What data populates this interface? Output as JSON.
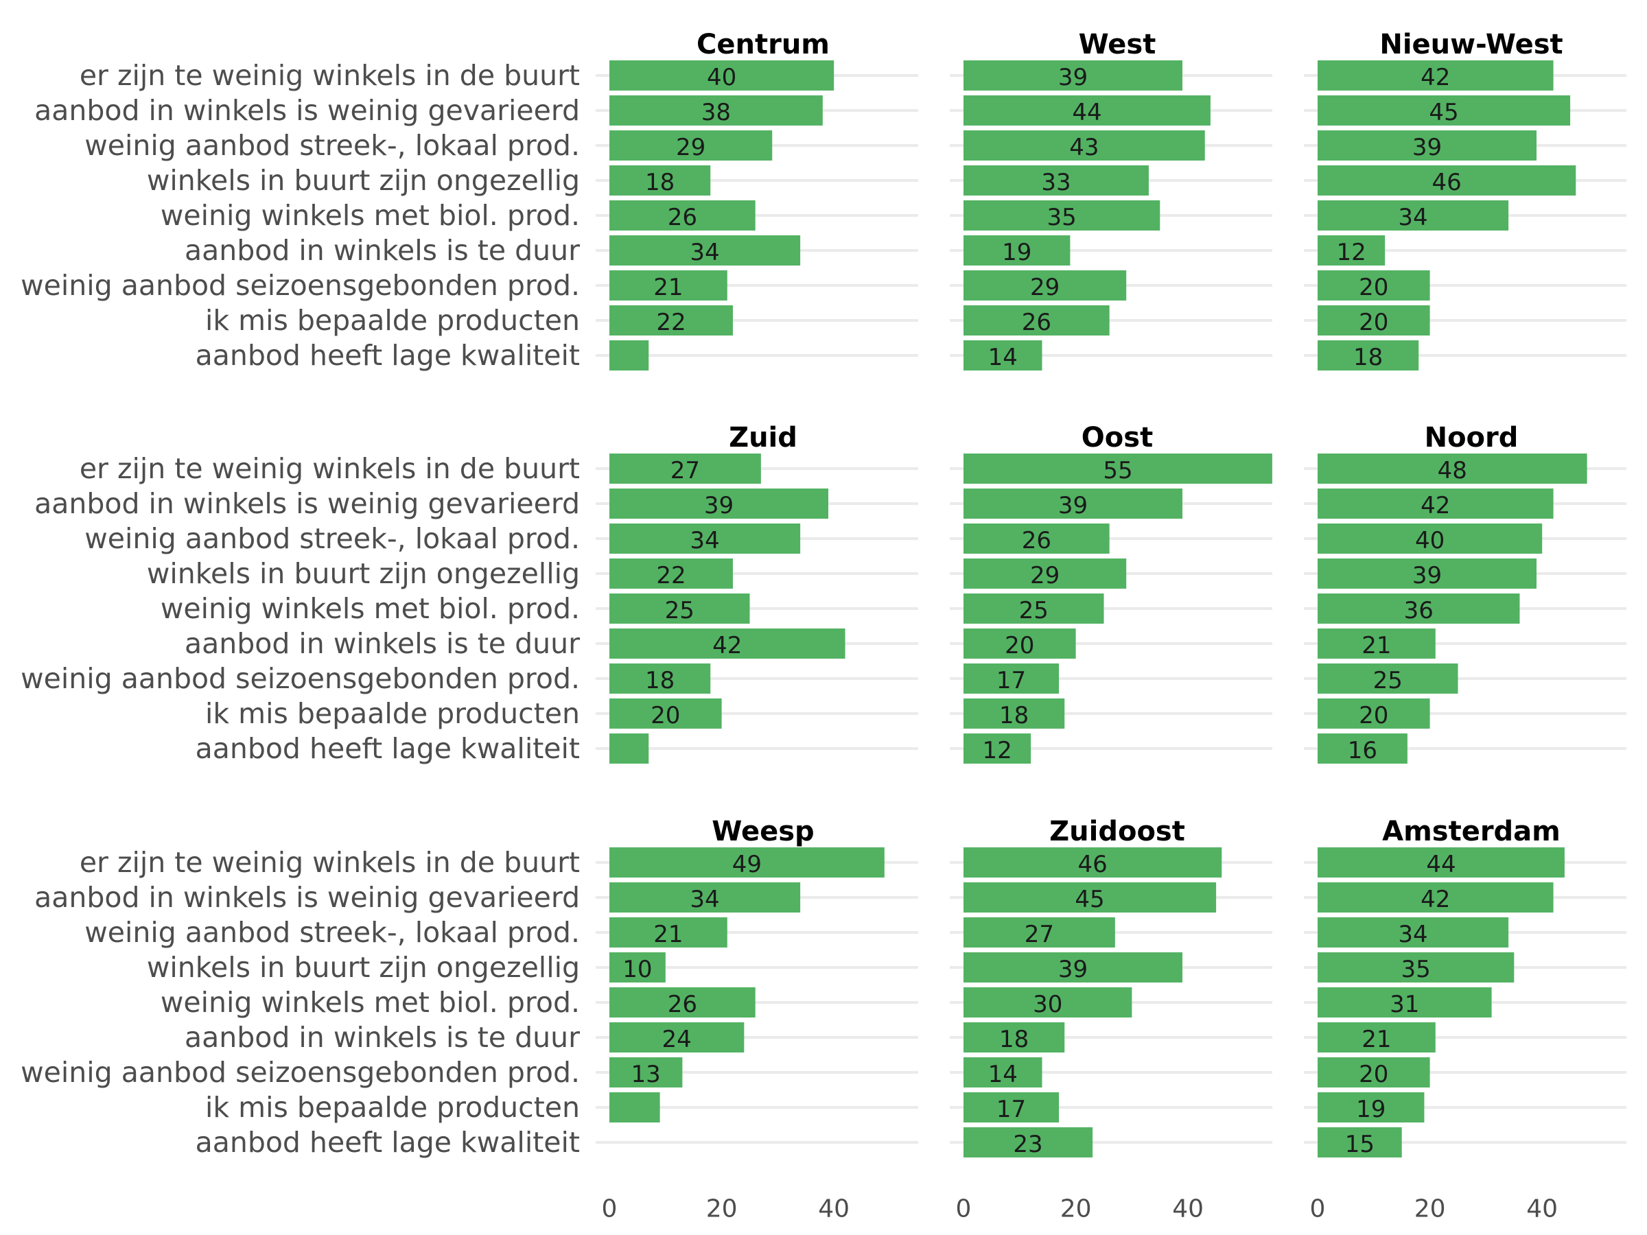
{
  "chart_data": {
    "type": "bar",
    "orientation": "horizontal",
    "categories": [
      "er zijn te weinig winkels in de buurt",
      "aanbod in winkels is weinig gevarieerd",
      "weinig aanbod streek-, lokaal prod.",
      "winkels in buurt zijn ongezellig",
      "weinig winkels met biol. prod.",
      "aanbod in winkels is te duur",
      "weinig aanbod seizoensgebonden prod.",
      "ik mis bepaalde producten",
      "aanbod heeft lage kwaliteit"
    ],
    "panels": [
      {
        "title": "Centrum",
        "values": [
          40,
          38,
          29,
          18,
          26,
          34,
          21,
          22,
          7
        ],
        "labels": [
          "40",
          "38",
          "29",
          "18",
          "26",
          "34",
          "21",
          "22",
          ""
        ]
      },
      {
        "title": "West",
        "values": [
          39,
          44,
          43,
          33,
          35,
          19,
          29,
          26,
          14
        ],
        "labels": [
          "39",
          "44",
          "43",
          "33",
          "35",
          "19",
          "29",
          "26",
          "14"
        ]
      },
      {
        "title": "Nieuw-West",
        "values": [
          42,
          45,
          39,
          46,
          34,
          12,
          20,
          20,
          18
        ],
        "labels": [
          "42",
          "45",
          "39",
          "46",
          "34",
          "12",
          "20",
          "20",
          "18"
        ]
      },
      {
        "title": "Zuid",
        "values": [
          27,
          39,
          34,
          22,
          25,
          42,
          18,
          20,
          7
        ],
        "labels": [
          "27",
          "39",
          "34",
          "22",
          "25",
          "42",
          "18",
          "20",
          ""
        ]
      },
      {
        "title": "Oost",
        "values": [
          55,
          39,
          26,
          29,
          25,
          20,
          17,
          18,
          12
        ],
        "labels": [
          "55",
          "39",
          "26",
          "29",
          "25",
          "20",
          "17",
          "18",
          "12"
        ]
      },
      {
        "title": "Noord",
        "values": [
          48,
          42,
          40,
          39,
          36,
          21,
          25,
          20,
          16
        ],
        "labels": [
          "48",
          "42",
          "40",
          "39",
          "36",
          "21",
          "25",
          "20",
          "16"
        ]
      },
      {
        "title": "Weesp",
        "values": [
          49,
          34,
          21,
          10,
          26,
          24,
          13,
          9,
          0
        ],
        "labels": [
          "49",
          "34",
          "21",
          "10",
          "26",
          "24",
          "13",
          "",
          ""
        ]
      },
      {
        "title": "Zuidoost",
        "values": [
          46,
          45,
          27,
          39,
          30,
          18,
          14,
          17,
          23
        ],
        "labels": [
          "46",
          "45",
          "27",
          "39",
          "30",
          "18",
          "14",
          "17",
          "23"
        ]
      },
      {
        "title": "Amsterdam",
        "values": [
          44,
          42,
          34,
          35,
          31,
          21,
          20,
          19,
          15
        ],
        "labels": [
          "44",
          "42",
          "34",
          "35",
          "31",
          "21",
          "20",
          "19",
          "15"
        ]
      }
    ],
    "xticks": [
      "0",
      "20",
      "40"
    ],
    "xtick_values": [
      0,
      20,
      40
    ],
    "xlim": [
      0,
      57
    ],
    "bar_color": "#52b262",
    "grid": true,
    "legend": "none"
  }
}
